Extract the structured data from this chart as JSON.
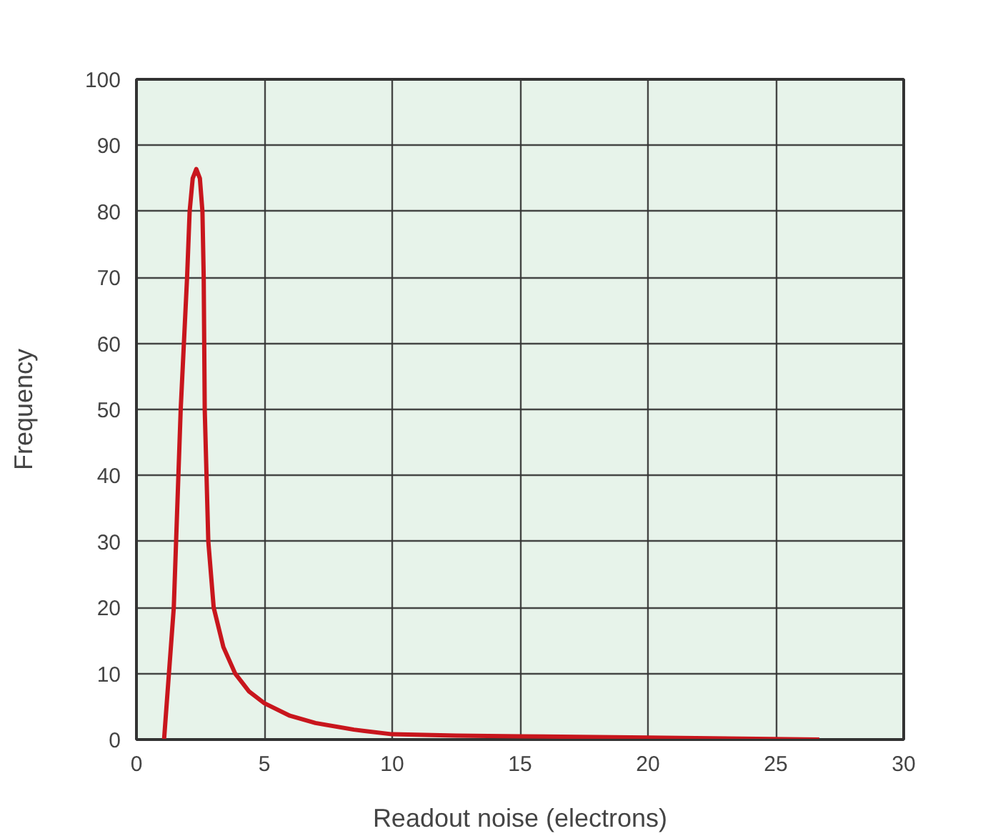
{
  "chart_data": {
    "type": "line",
    "xlabel": "Readout noise (electrons)",
    "ylabel": "Frequency",
    "x": [
      1.08,
      1.46,
      1.73,
      1.98,
      2.08,
      2.2,
      2.34,
      2.48,
      2.58,
      2.63,
      2.67,
      2.81,
      3.02,
      3.4,
      3.86,
      4.4,
      5,
      6,
      7,
      8.5,
      10,
      12.5,
      15,
      20,
      26.7
    ],
    "series": [
      {
        "color": "#c8161d",
        "values": [
          0,
          20,
          50,
          70,
          80,
          85,
          86.4,
          85,
          80,
          70,
          50,
          30,
          20,
          14,
          10,
          7.3,
          5.5,
          3.6,
          2.5,
          1.5,
          0.8,
          0.6,
          0.5,
          0.3,
          0
        ]
      }
    ],
    "xlim": [
      0,
      30
    ],
    "ylim": [
      0,
      100
    ],
    "xticks": [
      0,
      5,
      10,
      15,
      20,
      25,
      30
    ],
    "yticks": [
      0,
      10,
      20,
      30,
      40,
      50,
      60,
      70,
      80,
      90,
      100
    ],
    "grid": true,
    "marker": "none",
    "line_style": "solid"
  }
}
